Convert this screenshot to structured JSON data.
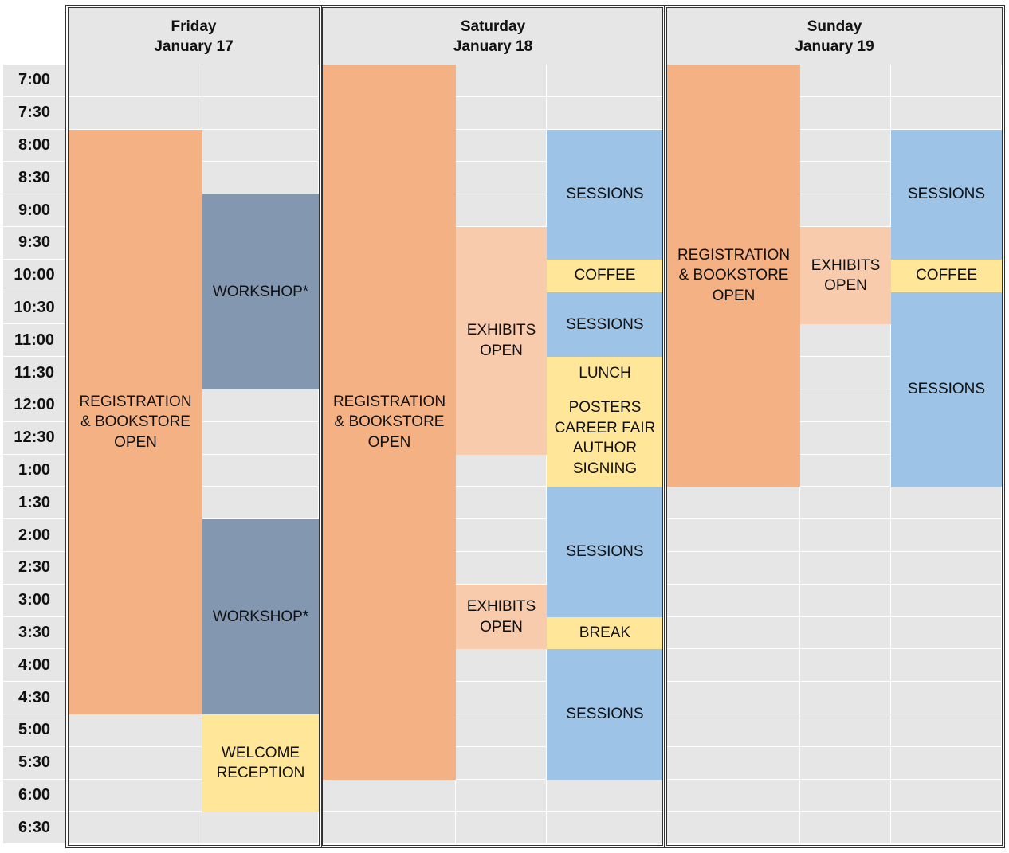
{
  "days": [
    {
      "name": "Friday",
      "date": "January 17"
    },
    {
      "name": "Saturday",
      "date": "January 18"
    },
    {
      "name": "Sunday",
      "date": "January 19"
    }
  ],
  "times": [
    "7:00",
    "7:30",
    "8:00",
    "8:30",
    "9:00",
    "9:30",
    "10:00",
    "10:30",
    "11:00",
    "11:30",
    "12:00",
    "12:30",
    "1:00",
    "1:30",
    "2:00",
    "2:30",
    "3:00",
    "3:30",
    "4:00",
    "4:30",
    "5:00",
    "5:30",
    "6:00",
    "6:30"
  ],
  "colors": {
    "registration": "#f4b183",
    "workshop": "#8497b0",
    "exhibits": "#f8cbad",
    "sessions": "#9dc3e6",
    "yellow": "#ffe699",
    "empty": "#e6e6e6"
  },
  "events": [
    {
      "day": 0,
      "col": 0,
      "start": "8:00",
      "end": "5:00",
      "kind": "registration",
      "lines": [
        "REGISTRATION",
        "& BOOKSTORE",
        "OPEN"
      ]
    },
    {
      "day": 0,
      "col": 1,
      "start": "9:00",
      "end": "12:00",
      "kind": "workshop",
      "lines": [
        "WORKSHOP*"
      ]
    },
    {
      "day": 0,
      "col": 1,
      "start": "2:00",
      "end": "5:00",
      "kind": "workshop",
      "lines": [
        "WORKSHOP*"
      ]
    },
    {
      "day": 0,
      "col": 1,
      "start": "5:00",
      "end": "6:30",
      "kind": "yellow",
      "lines": [
        "WELCOME",
        "RECEPTION"
      ]
    },
    {
      "day": 1,
      "col": 0,
      "start": "7:00",
      "end": "6:00",
      "kind": "registration",
      "lines": [
        "REGISTRATION",
        "& BOOKSTORE",
        "OPEN"
      ]
    },
    {
      "day": 1,
      "col": 1,
      "start": "9:30",
      "end": "1:00",
      "kind": "exhibits",
      "lines": [
        "EXHIBITS",
        "OPEN"
      ]
    },
    {
      "day": 1,
      "col": 1,
      "start": "3:00",
      "end": "4:00",
      "kind": "exhibits",
      "lines": [
        "EXHIBITS",
        "OPEN"
      ]
    },
    {
      "day": 1,
      "col": 2,
      "start": "8:00",
      "end": "10:00",
      "kind": "sessions",
      "lines": [
        "SESSIONS"
      ]
    },
    {
      "day": 1,
      "col": 2,
      "start": "10:00",
      "end": "10:30",
      "kind": "yellow",
      "lines": [
        "COFFEE"
      ]
    },
    {
      "day": 1,
      "col": 2,
      "start": "10:30",
      "end": "11:30",
      "kind": "sessions",
      "lines": [
        "SESSIONS"
      ]
    },
    {
      "day": 1,
      "col": 2,
      "start": "11:30",
      "end": "12:00",
      "kind": "yellow",
      "lines": [
        "LUNCH"
      ]
    },
    {
      "day": 1,
      "col": 2,
      "start": "12:00",
      "end": "1:30",
      "kind": "yellow",
      "lines": [
        "POSTERS",
        "CAREER FAIR",
        "AUTHOR",
        "SIGNING"
      ]
    },
    {
      "day": 1,
      "col": 2,
      "start": "1:30",
      "end": "3:30",
      "kind": "sessions",
      "lines": [
        "SESSIONS"
      ]
    },
    {
      "day": 1,
      "col": 2,
      "start": "3:30",
      "end": "4:00",
      "kind": "yellow",
      "lines": [
        "BREAK"
      ]
    },
    {
      "day": 1,
      "col": 2,
      "start": "4:00",
      "end": "6:00",
      "kind": "sessions",
      "lines": [
        "SESSIONS"
      ]
    },
    {
      "day": 2,
      "col": 0,
      "start": "7:00",
      "end": "1:30",
      "kind": "registration",
      "lines": [
        "REGISTRATION",
        "& BOOKSTORE",
        "OPEN"
      ]
    },
    {
      "day": 2,
      "col": 1,
      "start": "9:30",
      "end": "11:00",
      "kind": "exhibits",
      "lines": [
        "EXHIBITS",
        "OPEN"
      ]
    },
    {
      "day": 2,
      "col": 2,
      "start": "8:00",
      "end": "10:00",
      "kind": "sessions",
      "lines": [
        "SESSIONS"
      ]
    },
    {
      "day": 2,
      "col": 2,
      "start": "10:00",
      "end": "10:30",
      "kind": "yellow",
      "lines": [
        "COFFEE"
      ]
    },
    {
      "day": 2,
      "col": 2,
      "start": "10:30",
      "end": "1:30",
      "kind": "sessions",
      "lines": [
        "SESSIONS"
      ]
    }
  ]
}
